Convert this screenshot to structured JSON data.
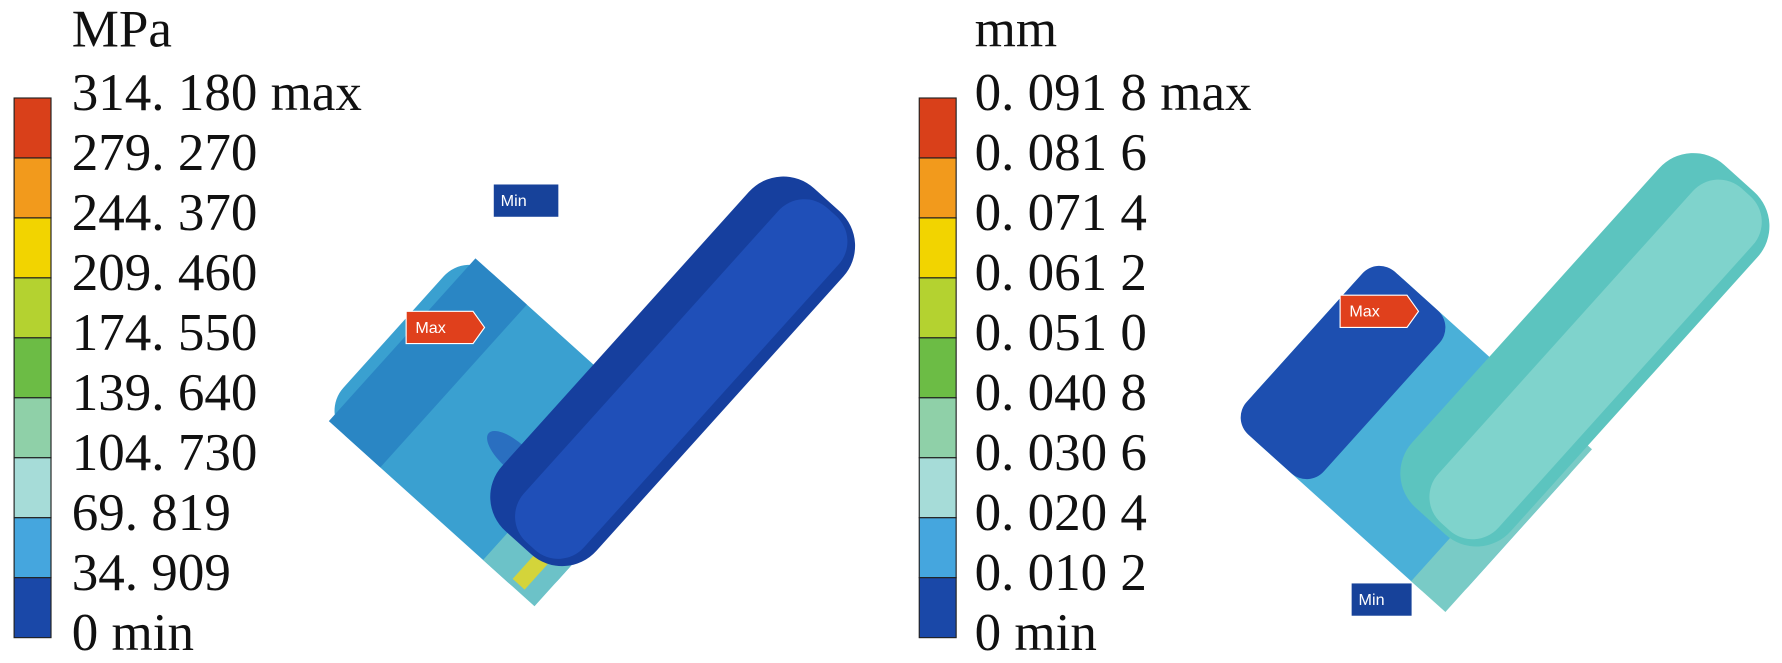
{
  "panels": [
    {
      "unit": "MPa",
      "legend": [
        "314. 180 max",
        "279. 270",
        "244. 370",
        "209. 460",
        "174. 550",
        "139. 640",
        "104. 730",
        "69. 819",
        "34. 909",
        "0 min"
      ],
      "min_marker": "Min",
      "max_marker": "Max"
    },
    {
      "unit": "mm",
      "legend": [
        "0. 091 8 max",
        "0. 081 6",
        "0. 071 4",
        "0. 061 2",
        "0. 051 0",
        "0. 040 8",
        "0. 030 6",
        "0. 020 4",
        "0. 010 2",
        "0 min"
      ],
      "min_marker": "Min",
      "max_marker": "Max"
    }
  ]
}
